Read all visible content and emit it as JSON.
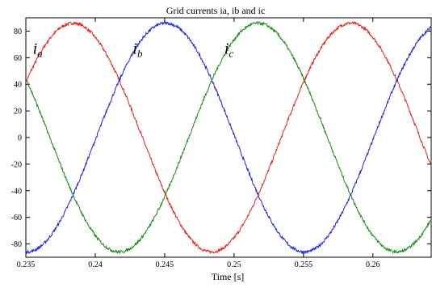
{
  "chart_data": {
    "type": "line",
    "title": "Grid currents ia, ib and ic",
    "xlabel": "Time [s]",
    "ylabel": "",
    "xlim": [
      0.235,
      0.2642
    ],
    "ylim": [
      -90,
      90
    ],
    "grid": false,
    "x_ticks": [
      "0.235",
      "0.24",
      "0.245",
      "0.25",
      "0.255",
      "0.26"
    ],
    "y_ticks": [
      "-80",
      "-60",
      "-40",
      "-20",
      "0",
      "20",
      "40",
      "60",
      "80"
    ],
    "annotations": [
      {
        "base": "i",
        "sub": "a",
        "x": 0.2355,
        "y": 63
      },
      {
        "base": "i",
        "sub": "b",
        "x": 0.2427,
        "y": 63
      },
      {
        "base": "i",
        "sub": "c",
        "x": 0.2493,
        "y": 63
      }
    ],
    "series": [
      {
        "label": "ia",
        "color": "#e8221f",
        "amplitude": 86,
        "frequency": 50,
        "peak_time": 0.2384
      },
      {
        "label": "ib",
        "color": "#1f25e8",
        "amplitude": 86,
        "frequency": 50,
        "peak_time": 0.24507
      },
      {
        "label": "ic",
        "color": "#1e8a1e",
        "amplitude": 86,
        "frequency": 50,
        "peak_time": 0.25173
      }
    ]
  }
}
